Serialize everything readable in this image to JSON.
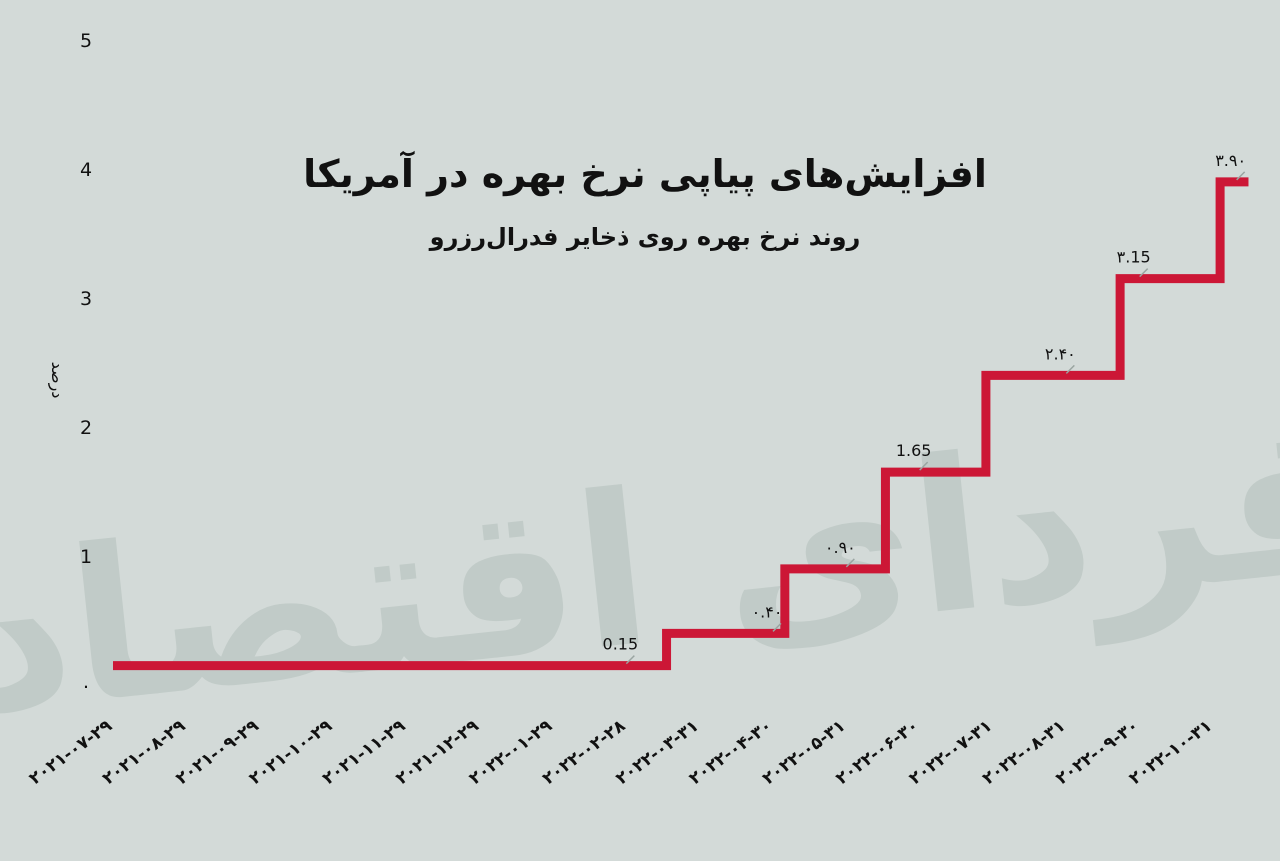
{
  "chart_data": {
    "type": "line",
    "step": true,
    "title": "افزایش‌های پیاپی نرخ بهره در آمریکا",
    "subtitle": "روند نرخ بهره روی ذخایر فدرال‌رزرو",
    "ylabel": "درصد",
    "xlabel": "",
    "ylim": [
      0,
      5
    ],
    "yticks": [
      "۰",
      "1",
      "2",
      "3",
      "4",
      "5"
    ],
    "grid": false,
    "legend": "none",
    "watermark": "فردای اقتصاد",
    "line_color": "#cc1736",
    "categories": [
      "2021-07-29",
      "2021-08-29",
      "2021-09-29",
      "2021-10-29",
      "2021-11-29",
      "2021-12-29",
      "2022-01-29",
      "2022-02-28",
      "2022-03-31",
      "2022-04-30",
      "2022-05-31",
      "2022-06-30",
      "2022-07-31",
      "2022-08-31",
      "2022-09-30",
      "2022-10-31"
    ],
    "category_labels": [
      "۲۰۲۱-۰۷-۲۹",
      "۲۰۲۱-۰۸-۲۹",
      "۲۰۲۱-۰۹-۲۹",
      "۲۰۲۱-۱۰-۲۹",
      "۲۰۲۱-۱۱-۲۹",
      "۲۰۲۱-۱۲-۲۹",
      "۲۰۲۲-۰۱-۲۹",
      "۲۰۲۲-۰۲-۲۸",
      "۲۰۲۲-۰۳-۳۱",
      "۲۰۲۲-۰۴-۳۰",
      "۲۰۲۲-۰۵-۳۱",
      "۲۰۲۲-۰۶-۳۰",
      "۲۰۲۲-۰۷-۳۱",
      "۲۰۲۲-۰۸-۳۱",
      "۲۰۲۲-۰۹-۳۰",
      "۲۰۲۲-۱۰-۳۱"
    ],
    "series": [
      {
        "x": [
          "2021-07-29",
          "2022-03-17",
          "2022-05-05",
          "2022-06-16",
          "2022-07-28",
          "2022-09-22",
          "2022-11-03",
          "2022-11-15"
        ],
        "values": [
          0.15,
          0.4,
          0.9,
          1.65,
          2.4,
          3.15,
          3.9,
          3.9
        ]
      }
    ],
    "annotations": [
      {
        "x": "2022-02-28",
        "value": 0.15,
        "text": "0.15"
      },
      {
        "x": "2022-04-30",
        "value": 0.4,
        "text": "۰.۴۰"
      },
      {
        "x": "2022-05-31",
        "value": 0.9,
        "text": "۰.۹۰"
      },
      {
        "x": "2022-06-30",
        "value": 1.65,
        "text": "1.65"
      },
      {
        "x": "2022-08-31",
        "value": 2.4,
        "text": "۲.۴۰"
      },
      {
        "x": "2022-09-30",
        "value": 3.15,
        "text": "۳.15"
      },
      {
        "x": "2022-11-10",
        "value": 3.9,
        "text": "۳.۹۰"
      }
    ]
  }
}
